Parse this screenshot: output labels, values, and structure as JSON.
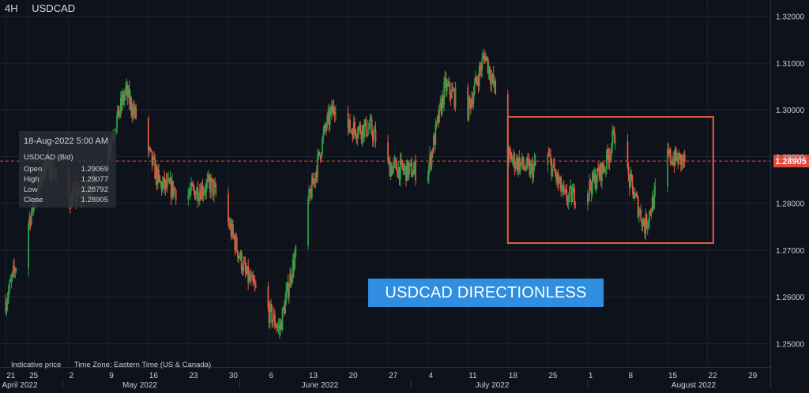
{
  "header": {
    "timeframe": "4H",
    "symbol": "USDCAD"
  },
  "tooltip": {
    "date": "18-Aug-2022 5:00 AM",
    "symbol": "USDCAD (Bid)",
    "rows": [
      {
        "label": "Open",
        "value": "1.29069"
      },
      {
        "label": "High",
        "value": "1.29077"
      },
      {
        "label": "Low",
        "value": "1.28792"
      },
      {
        "label": "Close",
        "value": "1.28905"
      }
    ]
  },
  "annotation": {
    "text": "USDCAD DIRECTIONLESS"
  },
  "footer": {
    "indicative": "Indicative price",
    "timezone": "Time Zone: Eastern Time (US & Canada)"
  },
  "colors": {
    "background": "#0e131b",
    "up": "#2e9e49",
    "down": "#e05a45",
    "price_line": "#e0463a",
    "box": "#e85a47",
    "annotation_bg": "#2f8ee0"
  },
  "chart_data": {
    "type": "candlestick",
    "symbol": "USDCAD",
    "timeframe": "4H",
    "ylim": [
      1.245,
      1.3235
    ],
    "y_ticks": [
      "1.25000",
      "1.26000",
      "1.27000",
      "1.28000",
      "1.29000",
      "1.30000",
      "1.31000",
      "1.32000"
    ],
    "current_price": "1.28905",
    "x_ticks": [
      "21",
      "25",
      "2",
      "9",
      "16",
      "23",
      "30",
      "6",
      "13",
      "20",
      "27",
      "4",
      "11",
      "18",
      "25",
      "1",
      "8",
      "15",
      "22",
      "29"
    ],
    "month_labels": [
      "April 2022",
      "May 2022",
      "June 2022",
      "July 2022",
      "August 2022"
    ],
    "price_path": [
      {
        "date": "2022-04-21",
        "price": 1.259
      },
      {
        "date": "2022-04-25",
        "price": 1.276
      },
      {
        "date": "2022-04-28",
        "price": 1.289
      },
      {
        "date": "2022-05-02",
        "price": 1.281
      },
      {
        "date": "2022-05-05",
        "price": 1.282
      },
      {
        "date": "2022-05-09",
        "price": 1.292
      },
      {
        "date": "2022-05-12",
        "price": 1.304
      },
      {
        "date": "2022-05-14",
        "price": 1.298
      },
      {
        "date": "2022-05-18",
        "price": 1.284
      },
      {
        "date": "2022-05-23",
        "price": 1.282
      },
      {
        "date": "2022-05-27",
        "price": 1.284
      },
      {
        "date": "2022-05-30",
        "price": 1.276
      },
      {
        "date": "2022-06-02",
        "price": 1.265
      },
      {
        "date": "2022-06-06",
        "price": 1.257
      },
      {
        "date": "2022-06-08",
        "price": 1.253
      },
      {
        "date": "2022-06-10",
        "price": 1.265
      },
      {
        "date": "2022-06-14",
        "price": 1.285
      },
      {
        "date": "2022-06-16",
        "price": 1.296
      },
      {
        "date": "2022-06-18",
        "price": 1.302
      },
      {
        "date": "2022-06-20",
        "price": 1.296
      },
      {
        "date": "2022-06-24",
        "price": 1.296
      },
      {
        "date": "2022-06-27",
        "price": 1.288
      },
      {
        "date": "2022-06-30",
        "price": 1.287
      },
      {
        "date": "2022-07-04",
        "price": 1.287
      },
      {
        "date": "2022-07-07",
        "price": 1.305
      },
      {
        "date": "2022-07-11",
        "price": 1.3
      },
      {
        "date": "2022-07-14",
        "price": 1.312
      },
      {
        "date": "2022-07-16",
        "price": 1.303
      },
      {
        "date": "2022-07-18",
        "price": 1.29
      },
      {
        "date": "2022-07-22",
        "price": 1.287
      },
      {
        "date": "2022-07-25",
        "price": 1.29
      },
      {
        "date": "2022-07-28",
        "price": 1.281
      },
      {
        "date": "2022-08-01",
        "price": 1.283
      },
      {
        "date": "2022-08-04",
        "price": 1.288
      },
      {
        "date": "2022-08-06",
        "price": 1.296
      },
      {
        "date": "2022-08-08",
        "price": 1.286
      },
      {
        "date": "2022-08-11",
        "price": 1.275
      },
      {
        "date": "2022-08-15",
        "price": 1.29
      },
      {
        "date": "2022-08-18",
        "price": 1.289
      }
    ],
    "box": {
      "x_start": "2022-07-18",
      "x_end": "2022-08-23",
      "y_low": 1.2715,
      "y_high": 1.2985
    },
    "grid": true
  }
}
